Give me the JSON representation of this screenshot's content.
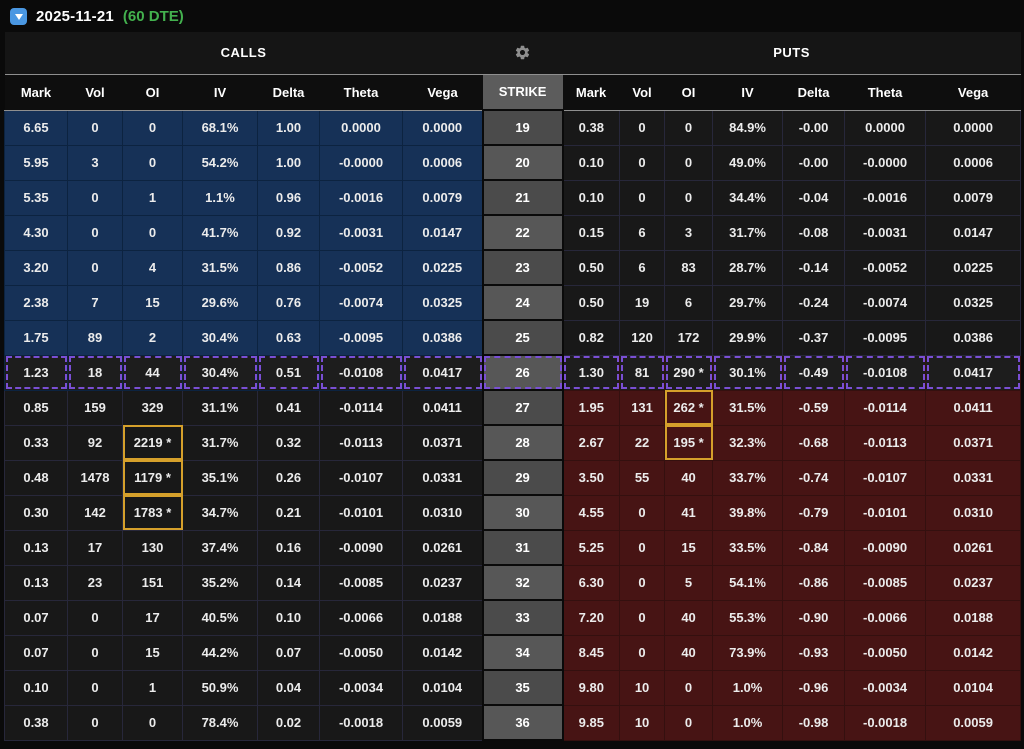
{
  "top_bar": {
    "date": "2025-11-21",
    "dte": "(60 DTE)",
    "dropdown_icon": "chevron-down",
    "dte_color": "#43b14e",
    "dropdown_color": "#4a97e2"
  },
  "table": {
    "calls_label": "CALLS",
    "puts_label": "PUTS",
    "strike_header": "STRIKE",
    "settings_icon": "gear",
    "call_put_columns": [
      "Mark",
      "Vol",
      "OI",
      "IV",
      "Delta",
      "Theta",
      "Vega"
    ],
    "highlight_strike": "26",
    "colors": {
      "call_itm_bg": "#163157",
      "put_itm_bg": "#471414",
      "otm_bg": "#181818",
      "strike_bg": "#4b4b4b",
      "highlight_dash": "#7a4fd4",
      "oi_flag_border": "#d5a02b"
    },
    "rows": [
      {
        "strike": "19",
        "call": {
          "mark": "6.65",
          "vol": "0",
          "oi": "0",
          "iv": "68.1%",
          "delta": "1.00",
          "theta": "0.0000",
          "vega": "0.0000",
          "itm": true,
          "oi_flagged": false
        },
        "put": {
          "mark": "0.38",
          "vol": "0",
          "oi": "0",
          "iv": "84.9%",
          "delta": "-0.00",
          "theta": "0.0000",
          "vega": "0.0000",
          "itm": false,
          "oi_flagged": false
        }
      },
      {
        "strike": "20",
        "call": {
          "mark": "5.95",
          "vol": "3",
          "oi": "0",
          "iv": "54.2%",
          "delta": "1.00",
          "theta": "-0.0000",
          "vega": "0.0006",
          "itm": true,
          "oi_flagged": false
        },
        "put": {
          "mark": "0.10",
          "vol": "0",
          "oi": "0",
          "iv": "49.0%",
          "delta": "-0.00",
          "theta": "-0.0000",
          "vega": "0.0006",
          "itm": false,
          "oi_flagged": false
        }
      },
      {
        "strike": "21",
        "call": {
          "mark": "5.35",
          "vol": "0",
          "oi": "1",
          "iv": "1.1%",
          "delta": "0.96",
          "theta": "-0.0016",
          "vega": "0.0079",
          "itm": true,
          "oi_flagged": false
        },
        "put": {
          "mark": "0.10",
          "vol": "0",
          "oi": "0",
          "iv": "34.4%",
          "delta": "-0.04",
          "theta": "-0.0016",
          "vega": "0.0079",
          "itm": false,
          "oi_flagged": false
        }
      },
      {
        "strike": "22",
        "call": {
          "mark": "4.30",
          "vol": "0",
          "oi": "0",
          "iv": "41.7%",
          "delta": "0.92",
          "theta": "-0.0031",
          "vega": "0.0147",
          "itm": true,
          "oi_flagged": false
        },
        "put": {
          "mark": "0.15",
          "vol": "6",
          "oi": "3",
          "iv": "31.7%",
          "delta": "-0.08",
          "theta": "-0.0031",
          "vega": "0.0147",
          "itm": false,
          "oi_flagged": false
        }
      },
      {
        "strike": "23",
        "call": {
          "mark": "3.20",
          "vol": "0",
          "oi": "4",
          "iv": "31.5%",
          "delta": "0.86",
          "theta": "-0.0052",
          "vega": "0.0225",
          "itm": true,
          "oi_flagged": false
        },
        "put": {
          "mark": "0.50",
          "vol": "6",
          "oi": "83",
          "iv": "28.7%",
          "delta": "-0.14",
          "theta": "-0.0052",
          "vega": "0.0225",
          "itm": false,
          "oi_flagged": false
        }
      },
      {
        "strike": "24",
        "call": {
          "mark": "2.38",
          "vol": "7",
          "oi": "15",
          "iv": "29.6%",
          "delta": "0.76",
          "theta": "-0.0074",
          "vega": "0.0325",
          "itm": true,
          "oi_flagged": false
        },
        "put": {
          "mark": "0.50",
          "vol": "19",
          "oi": "6",
          "iv": "29.7%",
          "delta": "-0.24",
          "theta": "-0.0074",
          "vega": "0.0325",
          "itm": false,
          "oi_flagged": false
        }
      },
      {
        "strike": "25",
        "call": {
          "mark": "1.75",
          "vol": "89",
          "oi": "2",
          "iv": "30.4%",
          "delta": "0.63",
          "theta": "-0.0095",
          "vega": "0.0386",
          "itm": true,
          "oi_flagged": false
        },
        "put": {
          "mark": "0.82",
          "vol": "120",
          "oi": "172",
          "iv": "29.9%",
          "delta": "-0.37",
          "theta": "-0.0095",
          "vega": "0.0386",
          "itm": false,
          "oi_flagged": false
        }
      },
      {
        "strike": "26",
        "call": {
          "mark": "1.23",
          "vol": "18",
          "oi": "44",
          "iv": "30.4%",
          "delta": "0.51",
          "theta": "-0.0108",
          "vega": "0.0417",
          "itm": true,
          "oi_flagged": false
        },
        "put": {
          "mark": "1.30",
          "vol": "81",
          "oi": "290 *",
          "iv": "30.1%",
          "delta": "-0.49",
          "theta": "-0.0108",
          "vega": "0.0417",
          "itm": true,
          "oi_flagged": false
        }
      },
      {
        "strike": "27",
        "call": {
          "mark": "0.85",
          "vol": "159",
          "oi": "329",
          "iv": "31.1%",
          "delta": "0.41",
          "theta": "-0.0114",
          "vega": "0.0411",
          "itm": false,
          "oi_flagged": false
        },
        "put": {
          "mark": "1.95",
          "vol": "131",
          "oi": "262 *",
          "iv": "31.5%",
          "delta": "-0.59",
          "theta": "-0.0114",
          "vega": "0.0411",
          "itm": true,
          "oi_flagged": true
        }
      },
      {
        "strike": "28",
        "call": {
          "mark": "0.33",
          "vol": "92",
          "oi": "2219 *",
          "iv": "31.7%",
          "delta": "0.32",
          "theta": "-0.0113",
          "vega": "0.0371",
          "itm": false,
          "oi_flagged": true
        },
        "put": {
          "mark": "2.67",
          "vol": "22",
          "oi": "195 *",
          "iv": "32.3%",
          "delta": "-0.68",
          "theta": "-0.0113",
          "vega": "0.0371",
          "itm": true,
          "oi_flagged": true
        }
      },
      {
        "strike": "29",
        "call": {
          "mark": "0.48",
          "vol": "1478",
          "oi": "1179 *",
          "iv": "35.1%",
          "delta": "0.26",
          "theta": "-0.0107",
          "vega": "0.0331",
          "itm": false,
          "oi_flagged": true
        },
        "put": {
          "mark": "3.50",
          "vol": "55",
          "oi": "40",
          "iv": "33.7%",
          "delta": "-0.74",
          "theta": "-0.0107",
          "vega": "0.0331",
          "itm": true,
          "oi_flagged": false
        }
      },
      {
        "strike": "30",
        "call": {
          "mark": "0.30",
          "vol": "142",
          "oi": "1783 *",
          "iv": "34.7%",
          "delta": "0.21",
          "theta": "-0.0101",
          "vega": "0.0310",
          "itm": false,
          "oi_flagged": true
        },
        "put": {
          "mark": "4.55",
          "vol": "0",
          "oi": "41",
          "iv": "39.8%",
          "delta": "-0.79",
          "theta": "-0.0101",
          "vega": "0.0310",
          "itm": true,
          "oi_flagged": false
        }
      },
      {
        "strike": "31",
        "call": {
          "mark": "0.13",
          "vol": "17",
          "oi": "130",
          "iv": "37.4%",
          "delta": "0.16",
          "theta": "-0.0090",
          "vega": "0.0261",
          "itm": false,
          "oi_flagged": false
        },
        "put": {
          "mark": "5.25",
          "vol": "0",
          "oi": "15",
          "iv": "33.5%",
          "delta": "-0.84",
          "theta": "-0.0090",
          "vega": "0.0261",
          "itm": true,
          "oi_flagged": false
        }
      },
      {
        "strike": "32",
        "call": {
          "mark": "0.13",
          "vol": "23",
          "oi": "151",
          "iv": "35.2%",
          "delta": "0.14",
          "theta": "-0.0085",
          "vega": "0.0237",
          "itm": false,
          "oi_flagged": false
        },
        "put": {
          "mark": "6.30",
          "vol": "0",
          "oi": "5",
          "iv": "54.1%",
          "delta": "-0.86",
          "theta": "-0.0085",
          "vega": "0.0237",
          "itm": true,
          "oi_flagged": false
        }
      },
      {
        "strike": "33",
        "call": {
          "mark": "0.07",
          "vol": "0",
          "oi": "17",
          "iv": "40.5%",
          "delta": "0.10",
          "theta": "-0.0066",
          "vega": "0.0188",
          "itm": false,
          "oi_flagged": false
        },
        "put": {
          "mark": "7.20",
          "vol": "0",
          "oi": "40",
          "iv": "55.3%",
          "delta": "-0.90",
          "theta": "-0.0066",
          "vega": "0.0188",
          "itm": true,
          "oi_flagged": false
        }
      },
      {
        "strike": "34",
        "call": {
          "mark": "0.07",
          "vol": "0",
          "oi": "15",
          "iv": "44.2%",
          "delta": "0.07",
          "theta": "-0.0050",
          "vega": "0.0142",
          "itm": false,
          "oi_flagged": false
        },
        "put": {
          "mark": "8.45",
          "vol": "0",
          "oi": "40",
          "iv": "73.9%",
          "delta": "-0.93",
          "theta": "-0.0050",
          "vega": "0.0142",
          "itm": true,
          "oi_flagged": false
        }
      },
      {
        "strike": "35",
        "call": {
          "mark": "0.10",
          "vol": "0",
          "oi": "1",
          "iv": "50.9%",
          "delta": "0.04",
          "theta": "-0.0034",
          "vega": "0.0104",
          "itm": false,
          "oi_flagged": false
        },
        "put": {
          "mark": "9.80",
          "vol": "10",
          "oi": "0",
          "iv": "1.0%",
          "delta": "-0.96",
          "theta": "-0.0034",
          "vega": "0.0104",
          "itm": true,
          "oi_flagged": false
        }
      },
      {
        "strike": "36",
        "call": {
          "mark": "0.38",
          "vol": "0",
          "oi": "0",
          "iv": "78.4%",
          "delta": "0.02",
          "theta": "-0.0018",
          "vega": "0.0059",
          "itm": false,
          "oi_flagged": false
        },
        "put": {
          "mark": "9.85",
          "vol": "10",
          "oi": "0",
          "iv": "1.0%",
          "delta": "-0.98",
          "theta": "-0.0018",
          "vega": "0.0059",
          "itm": true,
          "oi_flagged": false
        }
      }
    ]
  }
}
